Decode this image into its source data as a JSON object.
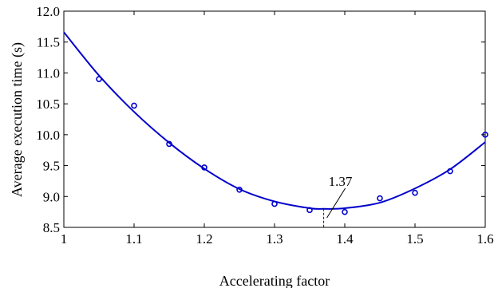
{
  "chart_data": {
    "type": "scatter",
    "title": "",
    "xlabel": "Accelerating factor",
    "ylabel": "Average execution time (s)",
    "xlim": [
      1.0,
      1.6
    ],
    "ylim": [
      8.5,
      12.0
    ],
    "xticks": [
      1.0,
      1.1,
      1.2,
      1.3,
      1.4,
      1.5,
      1.6
    ],
    "xtick_labels": [
      "1",
      "1.1",
      "1.2",
      "1.3",
      "1.4",
      "1.5",
      "1.6"
    ],
    "yticks": [
      8.5,
      9.0,
      9.5,
      10.0,
      10.5,
      11.0,
      11.5,
      12.0
    ],
    "ytick_labels": [
      "8.5",
      "9.0",
      "9.5",
      "10.0",
      "10.5",
      "11.0",
      "11.5",
      "12.0"
    ],
    "grid": false,
    "legend": "none",
    "series": [
      {
        "kind": "markers",
        "marker": "circle-open",
        "color": "#0000cc",
        "x": [
          1.05,
          1.1,
          1.15,
          1.2,
          1.25,
          1.3,
          1.35,
          1.4,
          1.45,
          1.5,
          1.55,
          1.6
        ],
        "y": [
          10.9,
          10.47,
          9.85,
          9.47,
          9.11,
          8.88,
          8.78,
          8.75,
          8.97,
          9.06,
          9.41,
          10.0
        ]
      },
      {
        "kind": "fitted-curve",
        "color": "#0000cc",
        "x": [
          1.0,
          1.05,
          1.1,
          1.15,
          1.2,
          1.25,
          1.3,
          1.35,
          1.37,
          1.4,
          1.45,
          1.5,
          1.55,
          1.6
        ],
        "y": [
          11.66,
          10.96,
          10.37,
          9.87,
          9.45,
          9.12,
          8.92,
          8.81,
          8.8,
          8.81,
          8.9,
          9.13,
          9.44,
          9.88
        ]
      }
    ],
    "annotation": {
      "label": "1.37",
      "x": 1.37,
      "y": 8.8,
      "color": "#000000",
      "marker_line_color": "#0000cc"
    }
  }
}
